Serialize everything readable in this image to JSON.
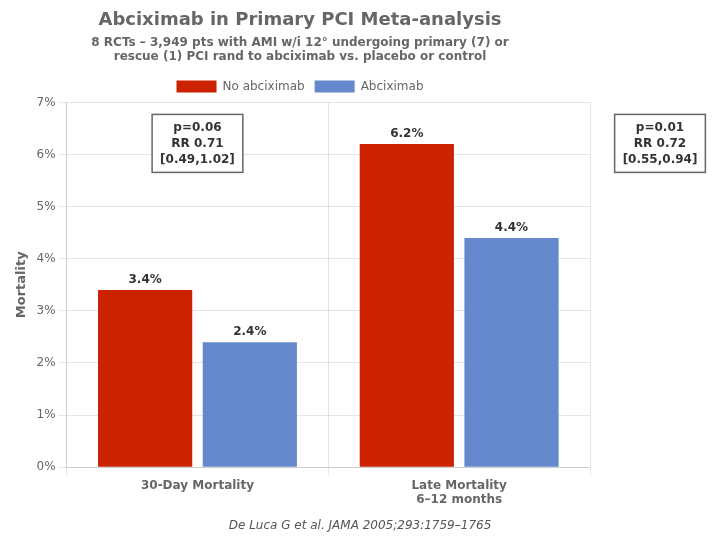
{
  "chart_data": {
    "type": "bar",
    "title": "Abciximab in Primary PCI Meta-analysis",
    "subtitle": "8 RCTs – 3,949 pts with AMI w/i 12° undergoing primary (7) or\nrescue (1) PCI rand to abciximab vs. placebo or control",
    "categories": [
      "30-Day Mortality",
      "Late Mortality\n6–12 months"
    ],
    "series": [
      {
        "name": "No abciximab",
        "color": "#CC2200",
        "values": [
          3.4,
          6.2
        ],
        "value_labels": [
          "3.4%",
          "6.2%"
        ]
      },
      {
        "name": "Abciximab",
        "color": "#6688CC",
        "values": [
          2.4,
          4.4
        ],
        "value_labels": [
          "2.4%",
          "4.4%"
        ]
      }
    ],
    "ylabel": "Mortality",
    "ylim": [
      0,
      7
    ],
    "yticks": [
      {
        "value": 0,
        "label": "0%"
      },
      {
        "value": 1,
        "label": "1%"
      },
      {
        "value": 2,
        "label": "2%"
      },
      {
        "value": 3,
        "label": "3%"
      },
      {
        "value": 4,
        "label": "4%"
      },
      {
        "value": 5,
        "label": "5%"
      },
      {
        "value": 6,
        "label": "6%"
      },
      {
        "value": 7,
        "label": "7%"
      }
    ],
    "grid": true,
    "legend": "top",
    "data_labels": true,
    "annotations": [
      "p=0.06\nRR 0.71\n[0.49,1.02]",
      "p=0.01\nRR 0.72\n[0.55,0.94]"
    ],
    "citation": "De Luca G et al. JAMA 2005;293:1759–1765"
  }
}
